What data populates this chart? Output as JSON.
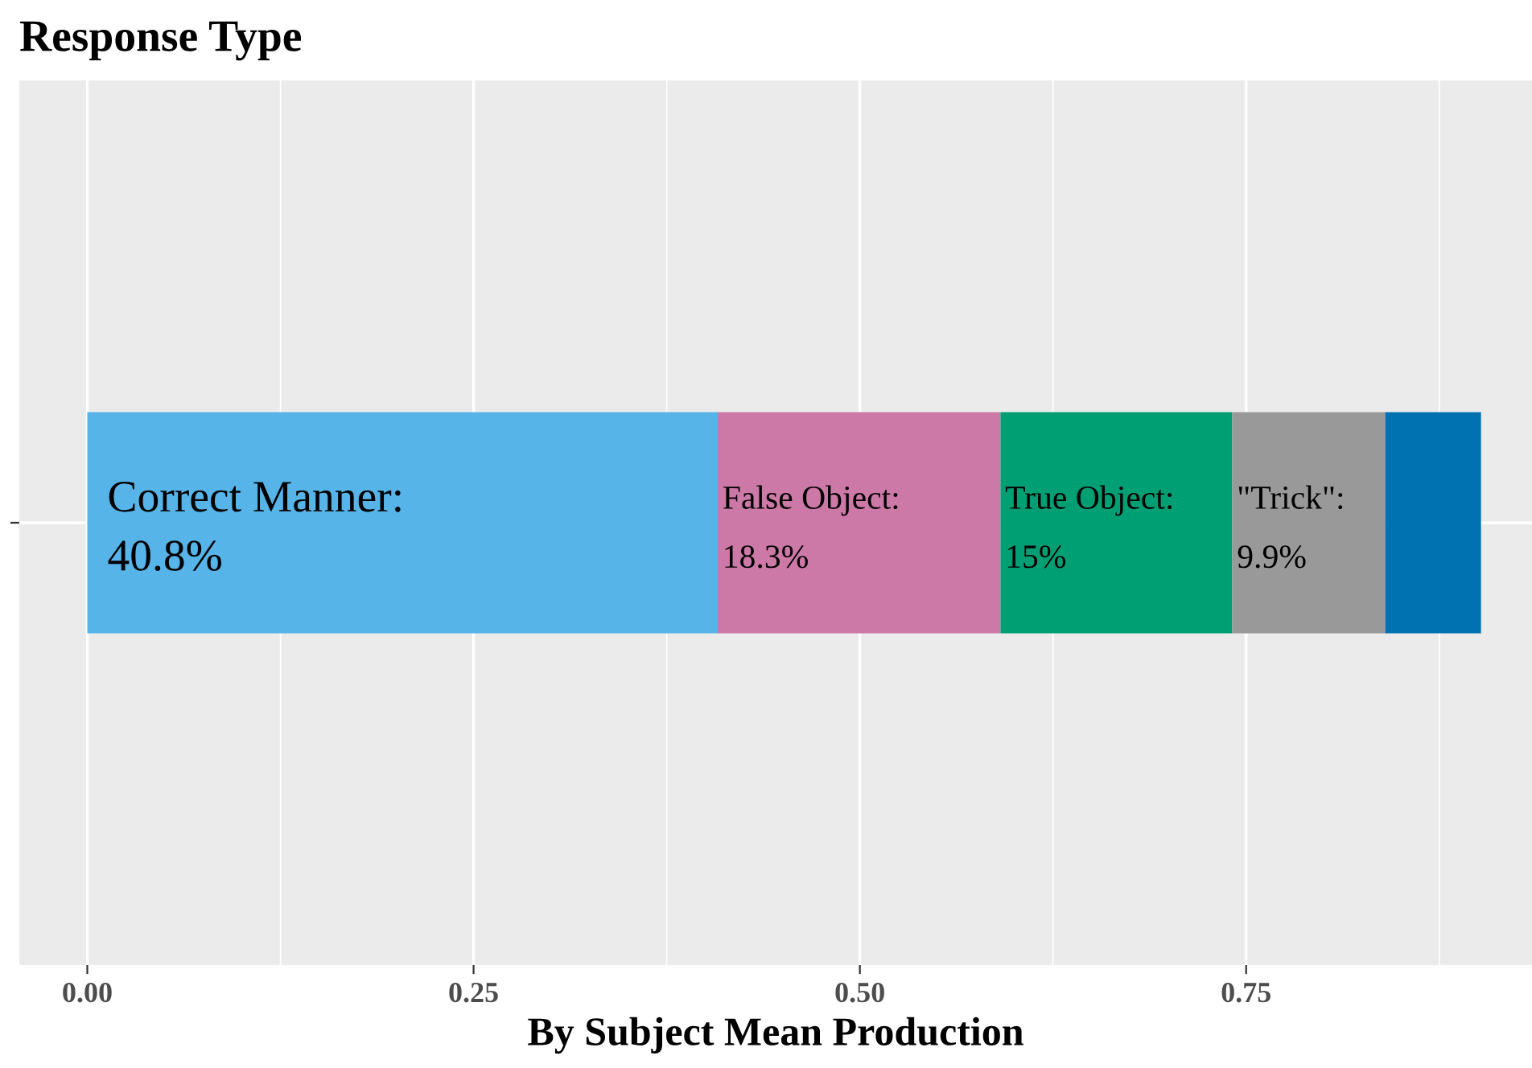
{
  "chart_data": {
    "type": "bar",
    "orientation": "horizontal",
    "stacked": true,
    "title": "Response Type",
    "xlabel": "By Subject Mean Production",
    "categories": [
      null
    ],
    "series": [
      {
        "name": "Correct Manner:",
        "color": "#56b4e9",
        "values": [
          0.408
        ],
        "value_labels": [
          "40.8%"
        ]
      },
      {
        "name": "False Object:",
        "color": "#cc79a7",
        "values": [
          0.183
        ],
        "value_labels": [
          "18.3%"
        ]
      },
      {
        "name": "True Object:",
        "color": "#009e73",
        "values": [
          0.15
        ],
        "value_labels": [
          "15%"
        ]
      },
      {
        "name": "\"Trick\":",
        "color": "#999999",
        "values": [
          0.099
        ],
        "value_labels": [
          "9.9%"
        ]
      },
      {
        "color": "#0072b2",
        "values": [
          0.062
        ]
      }
    ],
    "xlim": [
      -0.044,
      0.935
    ],
    "xticks": [
      {
        "value": 0,
        "label": "0.00"
      },
      {
        "value": 0.25,
        "label": "0.25"
      },
      {
        "value": 0.5,
        "label": "0.50"
      },
      {
        "value": 0.75,
        "label": "0.75"
      }
    ],
    "grid": true,
    "legend": false
  }
}
